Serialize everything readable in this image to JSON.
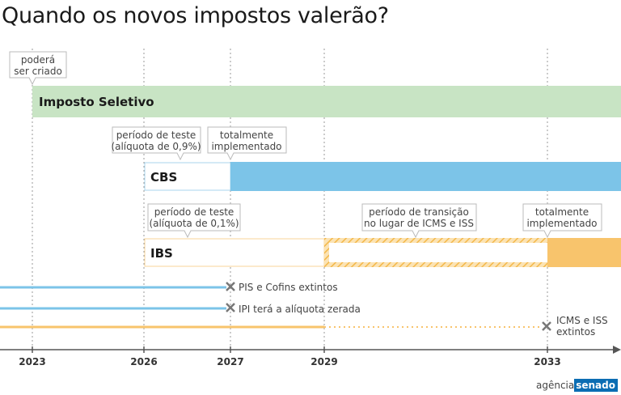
{
  "title": "Quando os novos impostos valerão?",
  "colors": {
    "seletivo": "#c8e4c4",
    "cbs": "#7cc4e8",
    "ibs": "#f8c46c",
    "gridline": "#9a9a9a",
    "callout_border": "#bbbbbb",
    "x_mark": "#777777"
  },
  "years": [
    "2023",
    "2026",
    "2027",
    "2029",
    "2033"
  ],
  "bars": {
    "seletivo": {
      "label": "Imposto Seletivo"
    },
    "cbs": {
      "label": "CBS"
    },
    "ibs": {
      "label": "IBS"
    }
  },
  "callouts": {
    "seletivo_created": [
      "poderá",
      "ser criado"
    ],
    "cbs_test": [
      "período de teste",
      "(alíquota de 0,9%)"
    ],
    "cbs_full": [
      "totalmente",
      "implementado"
    ],
    "ibs_test": [
      "período de teste",
      "(alíquota de 0,1%)"
    ],
    "ibs_transition": [
      "período de transição",
      "no lugar de ICMS e ISS"
    ],
    "ibs_full": [
      "totalmente",
      "implementado"
    ]
  },
  "extinctions": {
    "pis_cofins": [
      "PIS e Cofins extintos"
    ],
    "ipi": [
      "IPI terá a alíquota zerada"
    ],
    "icms_iss": [
      "ICMS e ISS",
      "extintos"
    ]
  },
  "logo": {
    "part1": "agência",
    "part2": "senado"
  }
}
